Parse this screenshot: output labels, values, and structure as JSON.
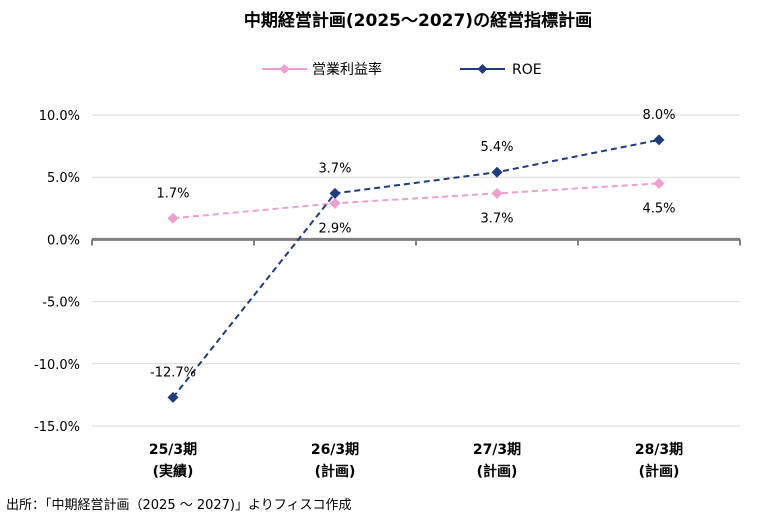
{
  "chart_data": {
    "type": "line",
    "title": "中期経営計画(2025～2027)の経営指標計画",
    "categories": [
      [
        "25/3期",
        "(実績)"
      ],
      [
        "26/3期",
        "(計画)"
      ],
      [
        "27/3期",
        "(計画)"
      ],
      [
        "28/3期",
        "(計画)"
      ]
    ],
    "y_ticks": [
      "10.0%",
      "5.0%",
      "0.0%",
      "-5.0%",
      "-10.0%",
      "-15.0%"
    ],
    "ylim": [
      -15,
      10
    ],
    "legend_position": "top",
    "series": [
      {
        "name": "営業利益率",
        "values": [
          1.7,
          2.9,
          3.7,
          4.5
        ],
        "labels": [
          "1.7%",
          "2.9%",
          "3.7%",
          "4.5%"
        ],
        "color": "#ee9fcf",
        "marker": "diamond",
        "line_style": "dashed"
      },
      {
        "name": "ROE",
        "values": [
          -12.7,
          3.7,
          5.4,
          8.0
        ],
        "labels": [
          "-12.7%",
          "3.7%",
          "5.4%",
          "8.0%"
        ],
        "color": "#1f3c80",
        "marker": "diamond",
        "line_style": "dashed"
      }
    ],
    "grid": true
  },
  "source_note": "出所：「中期経営計画（2025 ～ 2027)」よりフィスコ作成"
}
